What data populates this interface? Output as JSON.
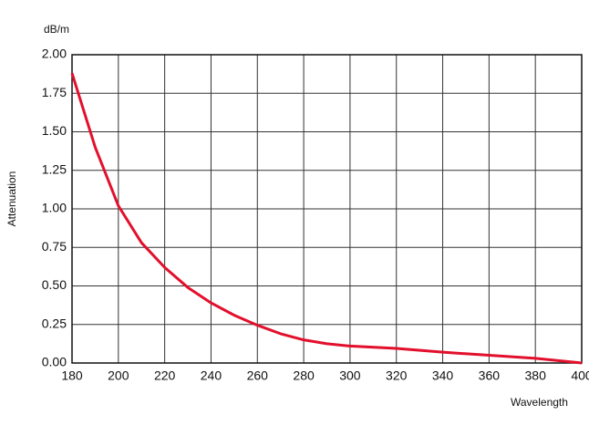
{
  "chart_data": {
    "type": "line",
    "y_unit": "dB/m",
    "ylabel": "Attenuation",
    "xlabel": "Wavelength",
    "x": [
      180,
      190,
      200,
      210,
      220,
      230,
      240,
      250,
      260,
      270,
      280,
      290,
      300,
      320,
      340,
      360,
      380,
      400
    ],
    "series": [
      {
        "name": "Attenuation",
        "color": "#e2102c",
        "values": [
          1.88,
          1.4,
          1.02,
          0.78,
          0.62,
          0.49,
          0.39,
          0.31,
          0.245,
          0.19,
          0.15,
          0.125,
          0.11,
          0.095,
          0.07,
          0.05,
          0.03,
          0.0
        ]
      }
    ],
    "xlim": [
      180,
      400
    ],
    "xticks": [
      180,
      200,
      220,
      240,
      260,
      280,
      300,
      320,
      340,
      360,
      380,
      400
    ],
    "ylim": [
      0,
      2
    ],
    "yticks": [
      {
        "value": 0,
        "label": "0.00"
      },
      {
        "value": 0.25,
        "label": "0.25"
      },
      {
        "value": 0.5,
        "label": "0.50"
      },
      {
        "value": 0.75,
        "label": "0.75"
      },
      {
        "value": 1,
        "label": "1.00"
      },
      {
        "value": 1.25,
        "label": "1.25"
      },
      {
        "value": 1.5,
        "label": "1.50"
      },
      {
        "value": 1.75,
        "label": "1.75"
      },
      {
        "value": 2,
        "label": "2.00"
      }
    ],
    "grid": true
  }
}
